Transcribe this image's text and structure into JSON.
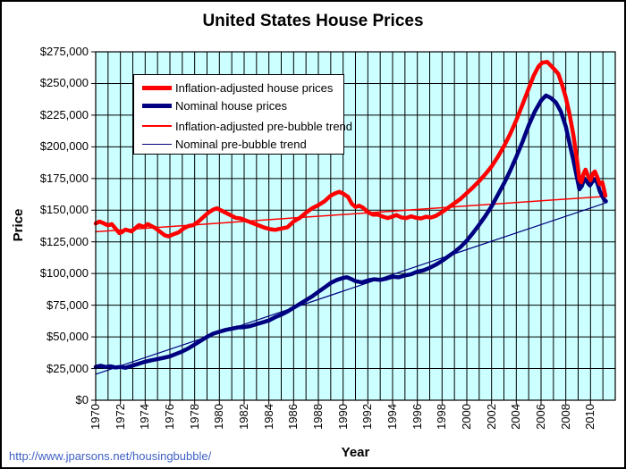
{
  "chart_data": {
    "type": "line",
    "title": "United States House Prices",
    "xlabel": "Year",
    "ylabel": "Price",
    "x_range": [
      1970,
      2012
    ],
    "y_range": [
      0,
      275000
    ],
    "x_grid_step": 1,
    "y_grid_step": 25000,
    "grid": "on",
    "plot_bg": "#CCFFFF",
    "grid_color": "#000000",
    "legend_position": "upper-left-inside",
    "y_ticks": [
      {
        "value": 0,
        "label": "$0"
      },
      {
        "value": 25000,
        "label": "$25,000"
      },
      {
        "value": 50000,
        "label": "$50,000"
      },
      {
        "value": 75000,
        "label": "$75,000"
      },
      {
        "value": 100000,
        "label": "$100,000"
      },
      {
        "value": 125000,
        "label": "$125,000"
      },
      {
        "value": 150000,
        "label": "$150,000"
      },
      {
        "value": 175000,
        "label": "$175,000"
      },
      {
        "value": 200000,
        "label": "$200,000"
      },
      {
        "value": 225000,
        "label": "$225,000"
      },
      {
        "value": 250000,
        "label": "$250,000"
      },
      {
        "value": 275000,
        "label": "$275,000"
      }
    ],
    "x_ticks": [
      {
        "value": 1970,
        "label": "1970"
      },
      {
        "value": 1972,
        "label": "1972"
      },
      {
        "value": 1974,
        "label": "1974"
      },
      {
        "value": 1976,
        "label": "1976"
      },
      {
        "value": 1978,
        "label": "1978"
      },
      {
        "value": 1980,
        "label": "1980"
      },
      {
        "value": 1982,
        "label": "1982"
      },
      {
        "value": 1984,
        "label": "1984"
      },
      {
        "value": 1986,
        "label": "1986"
      },
      {
        "value": 1988,
        "label": "1988"
      },
      {
        "value": 1990,
        "label": "1990"
      },
      {
        "value": 1992,
        "label": "1992"
      },
      {
        "value": 1994,
        "label": "1994"
      },
      {
        "value": 1996,
        "label": "1996"
      },
      {
        "value": 1998,
        "label": "1998"
      },
      {
        "value": 2000,
        "label": "2000"
      },
      {
        "value": 2002,
        "label": "2002"
      },
      {
        "value": 2004,
        "label": "2004"
      },
      {
        "value": 2006,
        "label": "2006"
      },
      {
        "value": 2008,
        "label": "2008"
      },
      {
        "value": 2010,
        "label": "2010"
      }
    ],
    "series": [
      {
        "name": "Inflation-adjusted house prices",
        "color": "#FF0000",
        "width": 4.5,
        "points": [
          [
            1970.0,
            139500
          ],
          [
            1970.3,
            141000
          ],
          [
            1970.6,
            139800
          ],
          [
            1971.0,
            138000
          ],
          [
            1971.3,
            139000
          ],
          [
            1971.9,
            132000
          ],
          [
            1972.1,
            132500
          ],
          [
            1972.4,
            134700
          ],
          [
            1972.9,
            133300
          ],
          [
            1973.5,
            138200
          ],
          [
            1973.9,
            136800
          ],
          [
            1974.2,
            139000
          ],
          [
            1974.8,
            136000
          ],
          [
            1975.2,
            133000
          ],
          [
            1975.6,
            130000
          ],
          [
            1975.9,
            129300
          ],
          [
            1976.3,
            131000
          ],
          [
            1976.7,
            132500
          ],
          [
            1977.1,
            135500
          ],
          [
            1977.5,
            137500
          ],
          [
            1977.9,
            138300
          ],
          [
            1978.3,
            141000
          ],
          [
            1978.7,
            144500
          ],
          [
            1979.1,
            148000
          ],
          [
            1979.5,
            150500
          ],
          [
            1979.8,
            151500
          ],
          [
            1980.2,
            149500
          ],
          [
            1980.6,
            147500
          ],
          [
            1980.9,
            146000
          ],
          [
            1981.3,
            144000
          ],
          [
            1981.7,
            143500
          ],
          [
            1982.1,
            142000
          ],
          [
            1982.5,
            140500
          ],
          [
            1982.9,
            139000
          ],
          [
            1983.3,
            137500
          ],
          [
            1983.7,
            136000
          ],
          [
            1984.1,
            135000
          ],
          [
            1984.5,
            134500
          ],
          [
            1985.0,
            135500
          ],
          [
            1985.5,
            136500
          ],
          [
            1986.0,
            141000
          ],
          [
            1986.5,
            144000
          ],
          [
            1987.0,
            148000
          ],
          [
            1987.5,
            151500
          ],
          [
            1988.0,
            154000
          ],
          [
            1988.5,
            157000
          ],
          [
            1989.0,
            161500
          ],
          [
            1989.4,
            163500
          ],
          [
            1989.7,
            164500
          ],
          [
            1990.0,
            163000
          ],
          [
            1990.4,
            160500
          ],
          [
            1990.7,
            155000
          ],
          [
            1991.0,
            152500
          ],
          [
            1991.3,
            153500
          ],
          [
            1991.6,
            152000
          ],
          [
            1992.0,
            148500
          ],
          [
            1992.4,
            146500
          ],
          [
            1992.8,
            146500
          ],
          [
            1993.2,
            145000
          ],
          [
            1993.6,
            143800
          ],
          [
            1994.0,
            145000
          ],
          [
            1994.3,
            146200
          ],
          [
            1994.7,
            144300
          ],
          [
            1995.1,
            143800
          ],
          [
            1995.5,
            145200
          ],
          [
            1995.9,
            144000
          ],
          [
            1996.3,
            143500
          ],
          [
            1996.7,
            144800
          ],
          [
            1997.1,
            144200
          ],
          [
            1997.5,
            145500
          ],
          [
            1998.0,
            148500
          ],
          [
            1998.5,
            152000
          ],
          [
            1999.0,
            155500
          ],
          [
            1999.5,
            159000
          ],
          [
            2000.0,
            163500
          ],
          [
            2000.5,
            168000
          ],
          [
            2001.0,
            173000
          ],
          [
            2001.5,
            178500
          ],
          [
            2002.0,
            184500
          ],
          [
            2002.5,
            192000
          ],
          [
            2003.0,
            200500
          ],
          [
            2003.5,
            210000
          ],
          [
            2004.0,
            221000
          ],
          [
            2004.5,
            233500
          ],
          [
            2005.0,
            246000
          ],
          [
            2005.4,
            256000
          ],
          [
            2005.8,
            263500
          ],
          [
            2006.1,
            266500
          ],
          [
            2006.5,
            267000
          ],
          [
            2006.8,
            264000
          ],
          [
            2007.1,
            261000
          ],
          [
            2007.4,
            257500
          ],
          [
            2007.7,
            249000
          ],
          [
            2008.0,
            239000
          ],
          [
            2008.3,
            226000
          ],
          [
            2008.6,
            210000
          ],
          [
            2008.9,
            190000
          ],
          [
            2009.1,
            174000
          ],
          [
            2009.25,
            172000
          ],
          [
            2009.45,
            179000
          ],
          [
            2009.6,
            182000
          ],
          [
            2009.8,
            177000
          ],
          [
            2010.0,
            173500
          ],
          [
            2010.2,
            179000
          ],
          [
            2010.35,
            180500
          ],
          [
            2010.55,
            176000
          ],
          [
            2010.75,
            170500
          ],
          [
            2010.95,
            172000
          ],
          [
            2011.1,
            166000
          ],
          [
            2011.2,
            161500
          ]
        ]
      },
      {
        "name": "Nominal house prices",
        "color": "#000080",
        "width": 4.5,
        "points": [
          [
            1970.0,
            26300
          ],
          [
            1970.4,
            27200
          ],
          [
            1970.8,
            26200
          ],
          [
            1971.2,
            26800
          ],
          [
            1971.6,
            25800
          ],
          [
            1972.0,
            26300
          ],
          [
            1972.4,
            25600
          ],
          [
            1972.8,
            26800
          ],
          [
            1973.2,
            28000
          ],
          [
            1973.6,
            29200
          ],
          [
            1974.0,
            30400
          ],
          [
            1974.5,
            31500
          ],
          [
            1975.0,
            32500
          ],
          [
            1975.5,
            33500
          ],
          [
            1976.0,
            34600
          ],
          [
            1976.5,
            36500
          ],
          [
            1977.0,
            38500
          ],
          [
            1977.5,
            41000
          ],
          [
            1978.0,
            44000
          ],
          [
            1978.5,
            47000
          ],
          [
            1979.0,
            50000
          ],
          [
            1979.5,
            52500
          ],
          [
            1980.0,
            54000
          ],
          [
            1980.5,
            55500
          ],
          [
            1981.0,
            56500
          ],
          [
            1981.5,
            57500
          ],
          [
            1982.0,
            57700
          ],
          [
            1982.5,
            58500
          ],
          [
            1983.0,
            60000
          ],
          [
            1983.5,
            61500
          ],
          [
            1984.0,
            63000
          ],
          [
            1984.5,
            65500
          ],
          [
            1985.0,
            67500
          ],
          [
            1985.5,
            70000
          ],
          [
            1986.0,
            73000
          ],
          [
            1986.5,
            76000
          ],
          [
            1987.0,
            79000
          ],
          [
            1987.5,
            82000
          ],
          [
            1988.0,
            85500
          ],
          [
            1988.5,
            89000
          ],
          [
            1989.0,
            92500
          ],
          [
            1989.5,
            95000
          ],
          [
            1990.0,
            96500
          ],
          [
            1990.3,
            97000
          ],
          [
            1990.7,
            95500
          ],
          [
            1991.0,
            94000
          ],
          [
            1991.5,
            93000
          ],
          [
            1992.0,
            94500
          ],
          [
            1992.5,
            95500
          ],
          [
            1993.0,
            95000
          ],
          [
            1993.5,
            96000
          ],
          [
            1994.0,
            97500
          ],
          [
            1994.5,
            97000
          ],
          [
            1995.0,
            98500
          ],
          [
            1995.5,
            99500
          ],
          [
            1996.0,
            101500
          ],
          [
            1996.5,
            102500
          ],
          [
            1997.0,
            104500
          ],
          [
            1997.5,
            107000
          ],
          [
            1998.0,
            110000
          ],
          [
            1998.5,
            113500
          ],
          [
            1999.0,
            117000
          ],
          [
            1999.5,
            121000
          ],
          [
            2000.0,
            126000
          ],
          [
            2000.5,
            132000
          ],
          [
            2001.0,
            138500
          ],
          [
            2001.5,
            145500
          ],
          [
            2002.0,
            153000
          ],
          [
            2002.5,
            162000
          ],
          [
            2003.0,
            171000
          ],
          [
            2003.5,
            181000
          ],
          [
            2004.0,
            192000
          ],
          [
            2004.5,
            204000
          ],
          [
            2005.0,
            217000
          ],
          [
            2005.5,
            228000
          ],
          [
            2006.0,
            236500
          ],
          [
            2006.4,
            240500
          ],
          [
            2006.8,
            238500
          ],
          [
            2007.2,
            235000
          ],
          [
            2007.6,
            228000
          ],
          [
            2008.0,
            216000
          ],
          [
            2008.3,
            203000
          ],
          [
            2008.6,
            190000
          ],
          [
            2008.9,
            176000
          ],
          [
            2009.1,
            166500
          ],
          [
            2009.3,
            169000
          ],
          [
            2009.5,
            175000
          ],
          [
            2009.7,
            172500
          ],
          [
            2009.95,
            169500
          ],
          [
            2010.15,
            172500
          ],
          [
            2010.35,
            174500
          ],
          [
            2010.55,
            171500
          ],
          [
            2010.75,
            165000
          ],
          [
            2010.95,
            161000
          ],
          [
            2011.1,
            158500
          ],
          [
            2011.25,
            157000
          ]
        ]
      },
      {
        "name": "Inflation-adjusted pre-bubble trend",
        "color": "#FF0000",
        "width": 1.5,
        "points": [
          [
            1970.0,
            133000
          ],
          [
            2011.3,
            161000
          ]
        ]
      },
      {
        "name": "Nominal pre-bubble trend",
        "color": "#000080",
        "width": 1.2,
        "points": [
          [
            1970.0,
            20500
          ],
          [
            2011.3,
            156000
          ]
        ]
      }
    ]
  },
  "footer": {
    "link": "http://www.jparsons.net/housingbubble/",
    "link_color": "#3D5FC4"
  }
}
